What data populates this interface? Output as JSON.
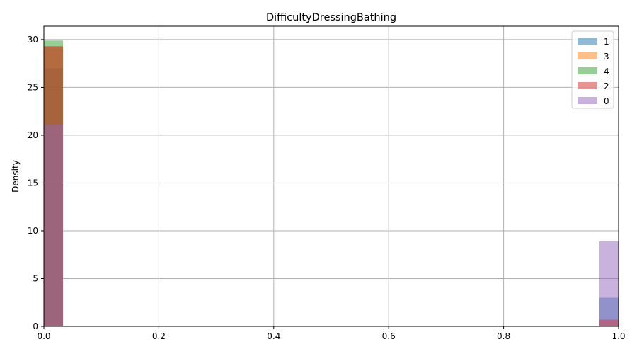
{
  "chart_data": {
    "type": "histogram",
    "title": "DifficultyDressingBathing",
    "xlabel": "",
    "ylabel": "Density",
    "xlim": [
      0,
      1
    ],
    "ylim": [
      0,
      31.4
    ],
    "xticks": [
      "0.0",
      "0.2",
      "0.4",
      "0.6",
      "0.8",
      "1.0"
    ],
    "xtick_values": [
      0,
      0.2,
      0.4,
      0.6,
      0.8,
      1.0
    ],
    "yticks": [
      "0",
      "5",
      "10",
      "15",
      "20",
      "25",
      "30"
    ],
    "ytick_values": [
      0,
      5,
      10,
      15,
      20,
      25,
      30
    ],
    "grid": true,
    "legend_position": "top-right",
    "bin_width": 0.0333,
    "series": [
      {
        "name": "1",
        "color": "#1f77b4",
        "bins": [
          {
            "x0": 0,
            "x1": 0.0333,
            "density": 27.0
          },
          {
            "x0": 0.9667,
            "x1": 1.0,
            "density": 3.0
          }
        ]
      },
      {
        "name": "3",
        "color": "#ff7f0e",
        "bins": [
          {
            "x0": 0,
            "x1": 0.0333,
            "density": 29.3
          },
          {
            "x0": 0.9667,
            "x1": 1.0,
            "density": 0.7
          }
        ]
      },
      {
        "name": "4",
        "color": "#2ca02c",
        "bins": [
          {
            "x0": 0,
            "x1": 0.0333,
            "density": 29.9
          },
          {
            "x0": 0.9667,
            "x1": 1.0,
            "density": 0.1
          }
        ]
      },
      {
        "name": "2",
        "color": "#d62728",
        "bins": [
          {
            "x0": 0,
            "x1": 0.0333,
            "density": 29.3
          },
          {
            "x0": 0.9667,
            "x1": 1.0,
            "density": 0.7
          }
        ]
      },
      {
        "name": "0",
        "color": "#9467bd",
        "bins": [
          {
            "x0": 0,
            "x1": 0.0333,
            "density": 21.1
          },
          {
            "x0": 0.9667,
            "x1": 1.0,
            "density": 8.9
          }
        ]
      }
    ],
    "bar_alpha": 0.5
  }
}
